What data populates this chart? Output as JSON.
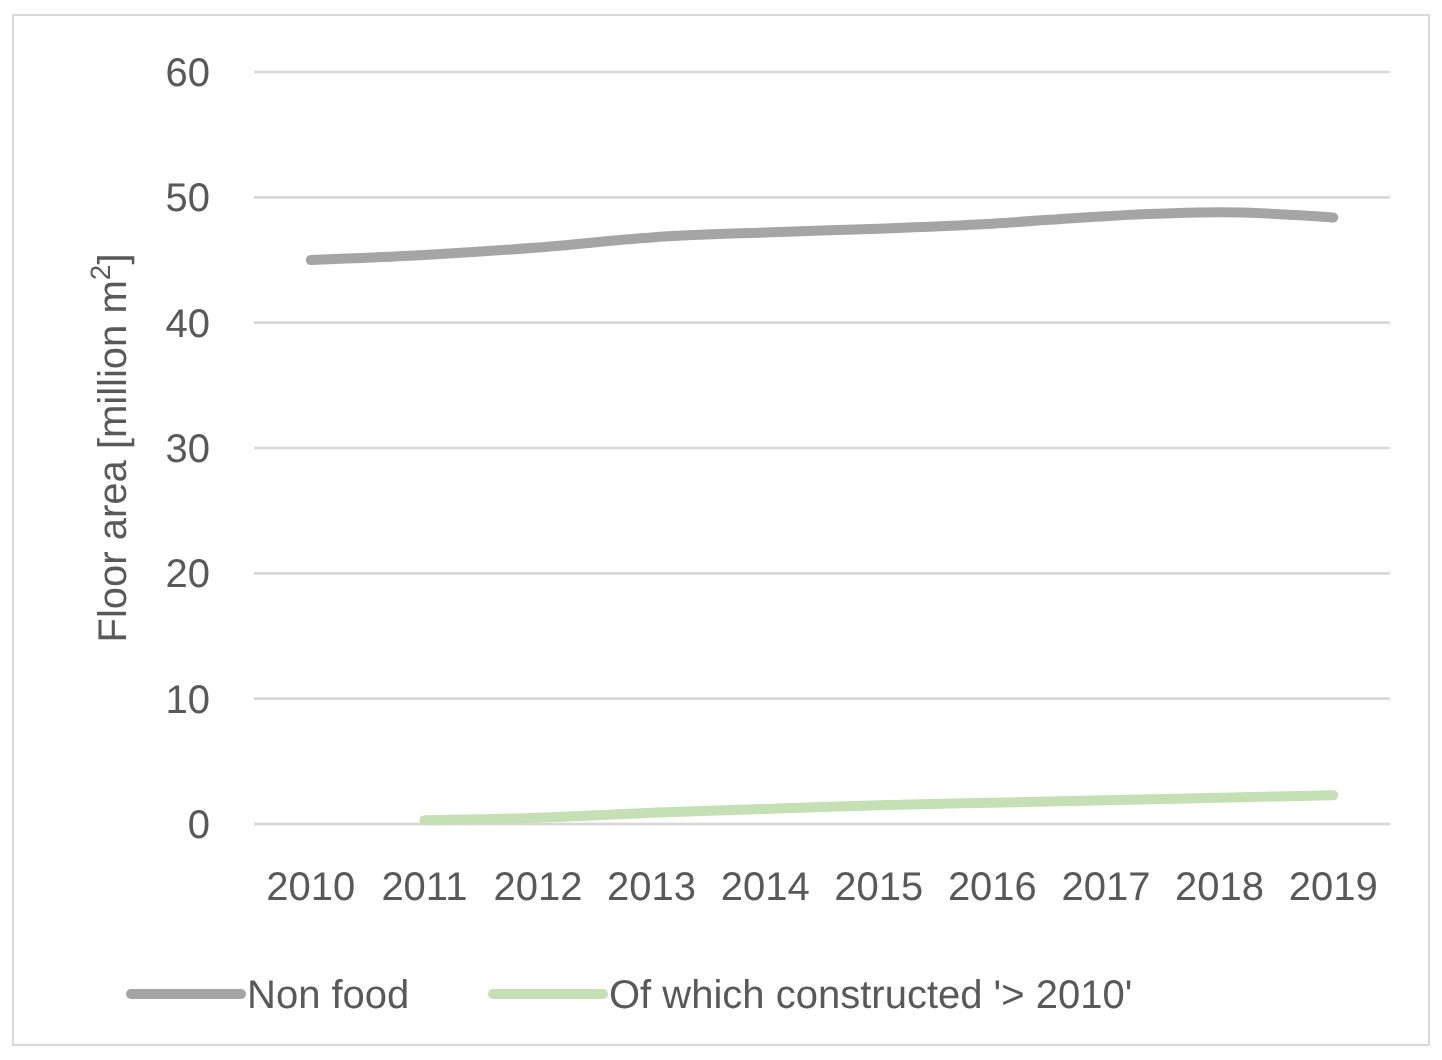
{
  "chart_data": {
    "type": "line",
    "ylabel": "Floor area [million m$^{2}$]",
    "categories": [
      "2010",
      "2011",
      "2012",
      "2013",
      "2014",
      "2015",
      "2016",
      "2017",
      "2018",
      "2019"
    ],
    "series": [
      {
        "name": "Non food",
        "color": "#a5a5a5",
        "values": [
          45.0,
          45.4,
          46.0,
          46.8,
          47.2,
          47.5,
          47.9,
          48.5,
          48.8,
          48.4
        ]
      },
      {
        "name": "Of which constructed '> 2010'",
        "color": "#c5e0b4",
        "values": [
          null,
          0.3,
          0.5,
          0.9,
          1.2,
          1.5,
          1.7,
          1.9,
          2.1,
          2.3
        ]
      }
    ],
    "ylim": [
      0,
      60
    ],
    "yticks": [
      0,
      10,
      20,
      30,
      40,
      50,
      60
    ],
    "grid": true,
    "legend": "bottom"
  }
}
